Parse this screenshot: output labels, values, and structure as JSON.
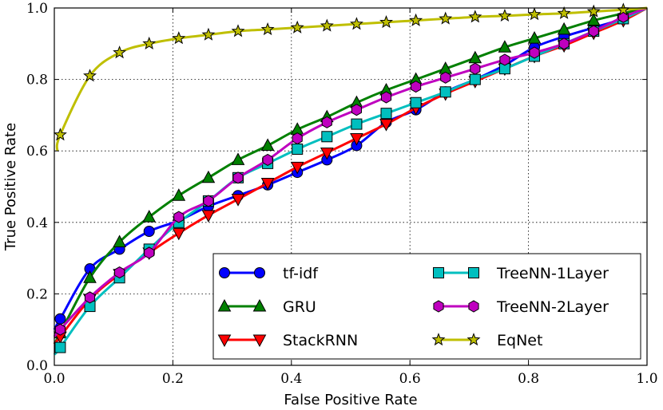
{
  "chart_data": {
    "type": "line",
    "title": "",
    "xlabel": "False Positive Rate",
    "ylabel": "True Positive Rate",
    "xlim": [
      0.0,
      1.0
    ],
    "ylim": [
      0.0,
      1.0
    ],
    "xticks": [
      "0.0",
      "0.2",
      "0.4",
      "0.6",
      "0.8",
      "1.0"
    ],
    "yticks": [
      "0.0",
      "0.2",
      "0.4",
      "0.6",
      "0.8",
      "1.0"
    ],
    "grid": true,
    "legend": "lower-right",
    "series": [
      {
        "name": "tf-idf",
        "color": "#0000ff",
        "marker": "circle",
        "x": [
          0,
          0.01,
          0.06,
          0.11,
          0.16,
          0.21,
          0.26,
          0.31,
          0.36,
          0.41,
          0.46,
          0.51,
          0.56,
          0.61,
          0.66,
          0.71,
          0.76,
          0.81,
          0.86,
          0.91,
          0.96,
          1.0
        ],
        "y": [
          0.1,
          0.13,
          0.27,
          0.325,
          0.375,
          0.405,
          0.445,
          0.475,
          0.505,
          0.54,
          0.575,
          0.615,
          0.68,
          0.715,
          0.765,
          0.8,
          0.84,
          0.89,
          0.92,
          0.945,
          0.97,
          1.0
        ]
      },
      {
        "name": "GRU",
        "color": "#008000",
        "marker": "triangle-up",
        "x": [
          0,
          0.01,
          0.06,
          0.11,
          0.16,
          0.21,
          0.26,
          0.31,
          0.36,
          0.41,
          0.46,
          0.51,
          0.56,
          0.61,
          0.66,
          0.71,
          0.76,
          0.81,
          0.86,
          0.91,
          0.96,
          1.0
        ],
        "y": [
          0.06,
          0.09,
          0.245,
          0.345,
          0.415,
          0.475,
          0.525,
          0.575,
          0.615,
          0.66,
          0.695,
          0.735,
          0.77,
          0.8,
          0.83,
          0.86,
          0.89,
          0.915,
          0.94,
          0.965,
          0.985,
          1.0
        ]
      },
      {
        "name": "StackRNN",
        "color": "#ff0000",
        "marker": "triangle-down",
        "x": [
          0,
          0.01,
          0.06,
          0.11,
          0.16,
          0.21,
          0.26,
          0.31,
          0.36,
          0.41,
          0.46,
          0.51,
          0.56,
          0.61,
          0.66,
          0.71,
          0.76,
          0.81,
          0.86,
          0.91,
          0.96,
          1.0
        ],
        "y": [
          0.06,
          0.08,
          0.185,
          0.255,
          0.315,
          0.37,
          0.42,
          0.465,
          0.51,
          0.555,
          0.595,
          0.635,
          0.675,
          0.72,
          0.76,
          0.795,
          0.83,
          0.865,
          0.895,
          0.93,
          0.965,
          1.0
        ]
      },
      {
        "name": "TreeNN-1Layer",
        "color": "#00bfbf",
        "marker": "square",
        "x": [
          0,
          0.01,
          0.06,
          0.11,
          0.16,
          0.21,
          0.26,
          0.31,
          0.36,
          0.41,
          0.46,
          0.51,
          0.56,
          0.61,
          0.66,
          0.71,
          0.76,
          0.81,
          0.86,
          0.91,
          0.96,
          1.0
        ],
        "y": [
          0.03,
          0.05,
          0.165,
          0.245,
          0.325,
          0.4,
          0.46,
          0.525,
          0.565,
          0.605,
          0.64,
          0.675,
          0.705,
          0.735,
          0.765,
          0.8,
          0.83,
          0.865,
          0.9,
          0.935,
          0.97,
          1.0
        ]
      },
      {
        "name": "TreeNN-2Layer",
        "color": "#bf00bf",
        "marker": "hexagon",
        "x": [
          0,
          0.01,
          0.06,
          0.11,
          0.16,
          0.21,
          0.26,
          0.31,
          0.36,
          0.41,
          0.46,
          0.51,
          0.56,
          0.61,
          0.66,
          0.71,
          0.76,
          0.81,
          0.86,
          0.91,
          0.96,
          1.0
        ],
        "y": [
          0.08,
          0.1,
          0.19,
          0.26,
          0.315,
          0.415,
          0.46,
          0.525,
          0.575,
          0.635,
          0.68,
          0.715,
          0.75,
          0.78,
          0.805,
          0.83,
          0.855,
          0.875,
          0.9,
          0.935,
          0.975,
          1.0
        ]
      },
      {
        "name": "EqNet",
        "color": "#bfbf00",
        "marker": "star",
        "x": [
          0.005,
          0.01,
          0.06,
          0.11,
          0.16,
          0.21,
          0.26,
          0.31,
          0.36,
          0.41,
          0.46,
          0.51,
          0.56,
          0.61,
          0.66,
          0.71,
          0.76,
          0.81,
          0.86,
          0.91,
          0.96,
          1.0
        ],
        "y": [
          0.6,
          0.645,
          0.81,
          0.875,
          0.9,
          0.915,
          0.925,
          0.935,
          0.94,
          0.945,
          0.95,
          0.955,
          0.96,
          0.965,
          0.97,
          0.975,
          0.978,
          0.982,
          0.985,
          0.99,
          0.995,
          1.0
        ]
      }
    ]
  }
}
